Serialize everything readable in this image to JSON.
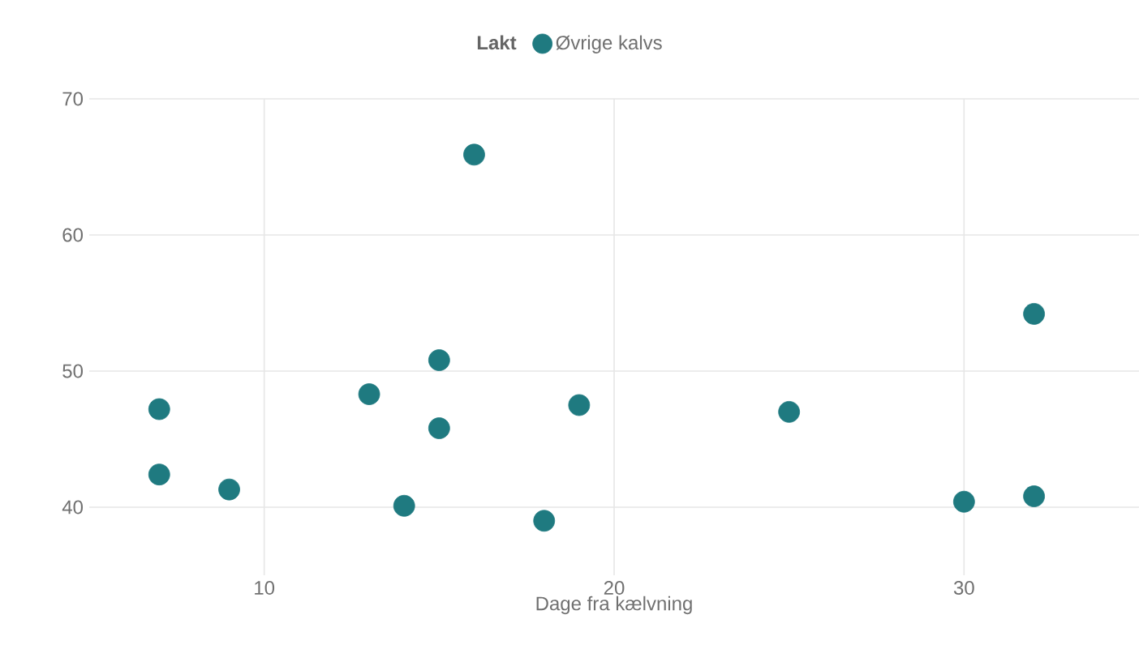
{
  "chart_data": {
    "type": "scatter",
    "xlabel": "Dage fra kælvning",
    "legend_title": "Lakt",
    "legend": "top",
    "grid": true,
    "marker": "circle",
    "xlim": [
      5,
      35
    ],
    "ylim": [
      35,
      70
    ],
    "xticks": [
      10,
      20,
      30
    ],
    "yticks": [
      40,
      50,
      60,
      70
    ],
    "series": [
      {
        "name": "Øvrige kalvs",
        "color": "#1f7a80",
        "x": [
          7,
          7,
          9,
          13,
          14,
          15,
          15,
          16,
          18,
          19,
          25,
          30,
          32,
          32
        ],
        "values": [
          47.2,
          42.4,
          41.3,
          48.3,
          40.1,
          50.8,
          45.8,
          65.9,
          39,
          47.5,
          47,
          40.4,
          54.2,
          40.8
        ]
      }
    ]
  }
}
